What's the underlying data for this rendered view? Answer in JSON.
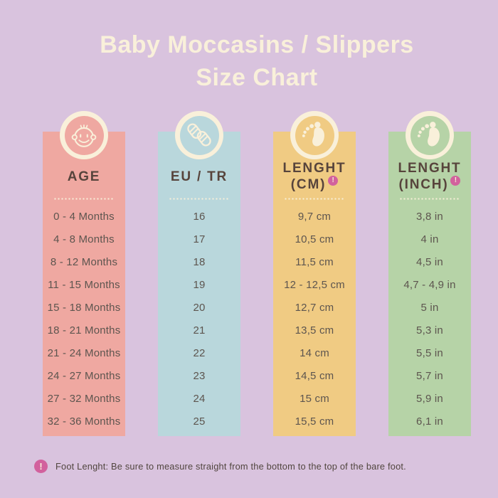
{
  "badge_symbol": "!",
  "title": {
    "line1": "Baby Moccasins / Slippers",
    "line2": "Size Chart"
  },
  "columns": [
    {
      "id": "age",
      "icon": "baby-face-icon",
      "bg": "#efa8a1",
      "header_lines": [
        "AGE"
      ],
      "has_badge": false,
      "values": [
        "0 - 4 Months",
        "4 - 8 Months",
        "8 - 12 Months",
        "11 - 15 Months",
        "15 - 18 Months",
        "18 - 21 Months",
        "21 - 24 Months",
        "24 - 27 Months",
        "27 - 32 Months",
        "32 - 36 Months"
      ]
    },
    {
      "id": "eu-tr",
      "icon": "booties-icon",
      "bg": "#b9d7dc",
      "header_lines": [
        "EU / TR"
      ],
      "has_badge": false,
      "values": [
        "16",
        "17",
        "18",
        "19",
        "20",
        "21",
        "22",
        "23",
        "24",
        "25"
      ]
    },
    {
      "id": "length-cm",
      "icon": "footprint-icon",
      "bg": "#f0cb83",
      "header_lines": [
        "LENGHT",
        "(CM)"
      ],
      "has_badge": true,
      "values": [
        "9,7 cm",
        "10,5 cm",
        "11,5 cm",
        "12 - 12,5 cm",
        "12,7 cm",
        "13,5 cm",
        "14 cm",
        "14,5 cm",
        "15 cm",
        "15,5 cm"
      ]
    },
    {
      "id": "length-inch",
      "icon": "footprint-icon",
      "bg": "#b6d3a7",
      "header_lines": [
        "LENGHT",
        "(INCH)"
      ],
      "has_badge": true,
      "values": [
        "3,8 in",
        "4 in",
        "4,5 in",
        "4,7 - 4,9 in",
        "5 in",
        "5,3 in",
        "5,5 in",
        "5,7 in",
        "5,9 in",
        "6,1 in"
      ]
    }
  ],
  "footnote": "Foot Lenght: Be sure to measure straight from the bottom to the top of the bare foot.",
  "colors": {
    "background": "#d9c3de",
    "cream": "#f9f0da",
    "header_text": "#57443c",
    "row_text": "#5d554f",
    "badge_pink": "#d2619d",
    "footnote_text": "#51463f",
    "column_pink": "#efa8a1",
    "column_blue": "#b9d7dc",
    "column_yellow": "#f0cb83",
    "column_green": "#b6d3a7"
  },
  "chart_data": {
    "type": "table",
    "title": "Baby Moccasins / Slippers Size Chart",
    "columns": [
      "AGE",
      "EU / TR",
      "LENGHT (CM)",
      "LENGHT (INCH)"
    ],
    "rows": [
      [
        "0 - 4 Months",
        "16",
        "9,7 cm",
        "3,8 in"
      ],
      [
        "4 - 8 Months",
        "17",
        "10,5 cm",
        "4 in"
      ],
      [
        "8 - 12 Months",
        "18",
        "11,5 cm",
        "4,5 in"
      ],
      [
        "11 - 15 Months",
        "19",
        "12 - 12,5 cm",
        "4,7 - 4,9 in"
      ],
      [
        "15 - 18 Months",
        "20",
        "12,7 cm",
        "5 in"
      ],
      [
        "18 - 21 Months",
        "21",
        "13,5 cm",
        "5,3 in"
      ],
      [
        "21 - 24 Months",
        "22",
        "14 cm",
        "5,5 in"
      ],
      [
        "24 - 27 Months",
        "23",
        "14,5 cm",
        "5,7 in"
      ],
      [
        "27 - 32 Months",
        "24",
        "15 cm",
        "5,9 in"
      ],
      [
        "32 - 36 Months",
        "25",
        "15,5 cm",
        "6,1 in"
      ]
    ],
    "footnote": "Foot Lenght: Be sure to measure straight from the bottom to the top of the bare foot."
  }
}
